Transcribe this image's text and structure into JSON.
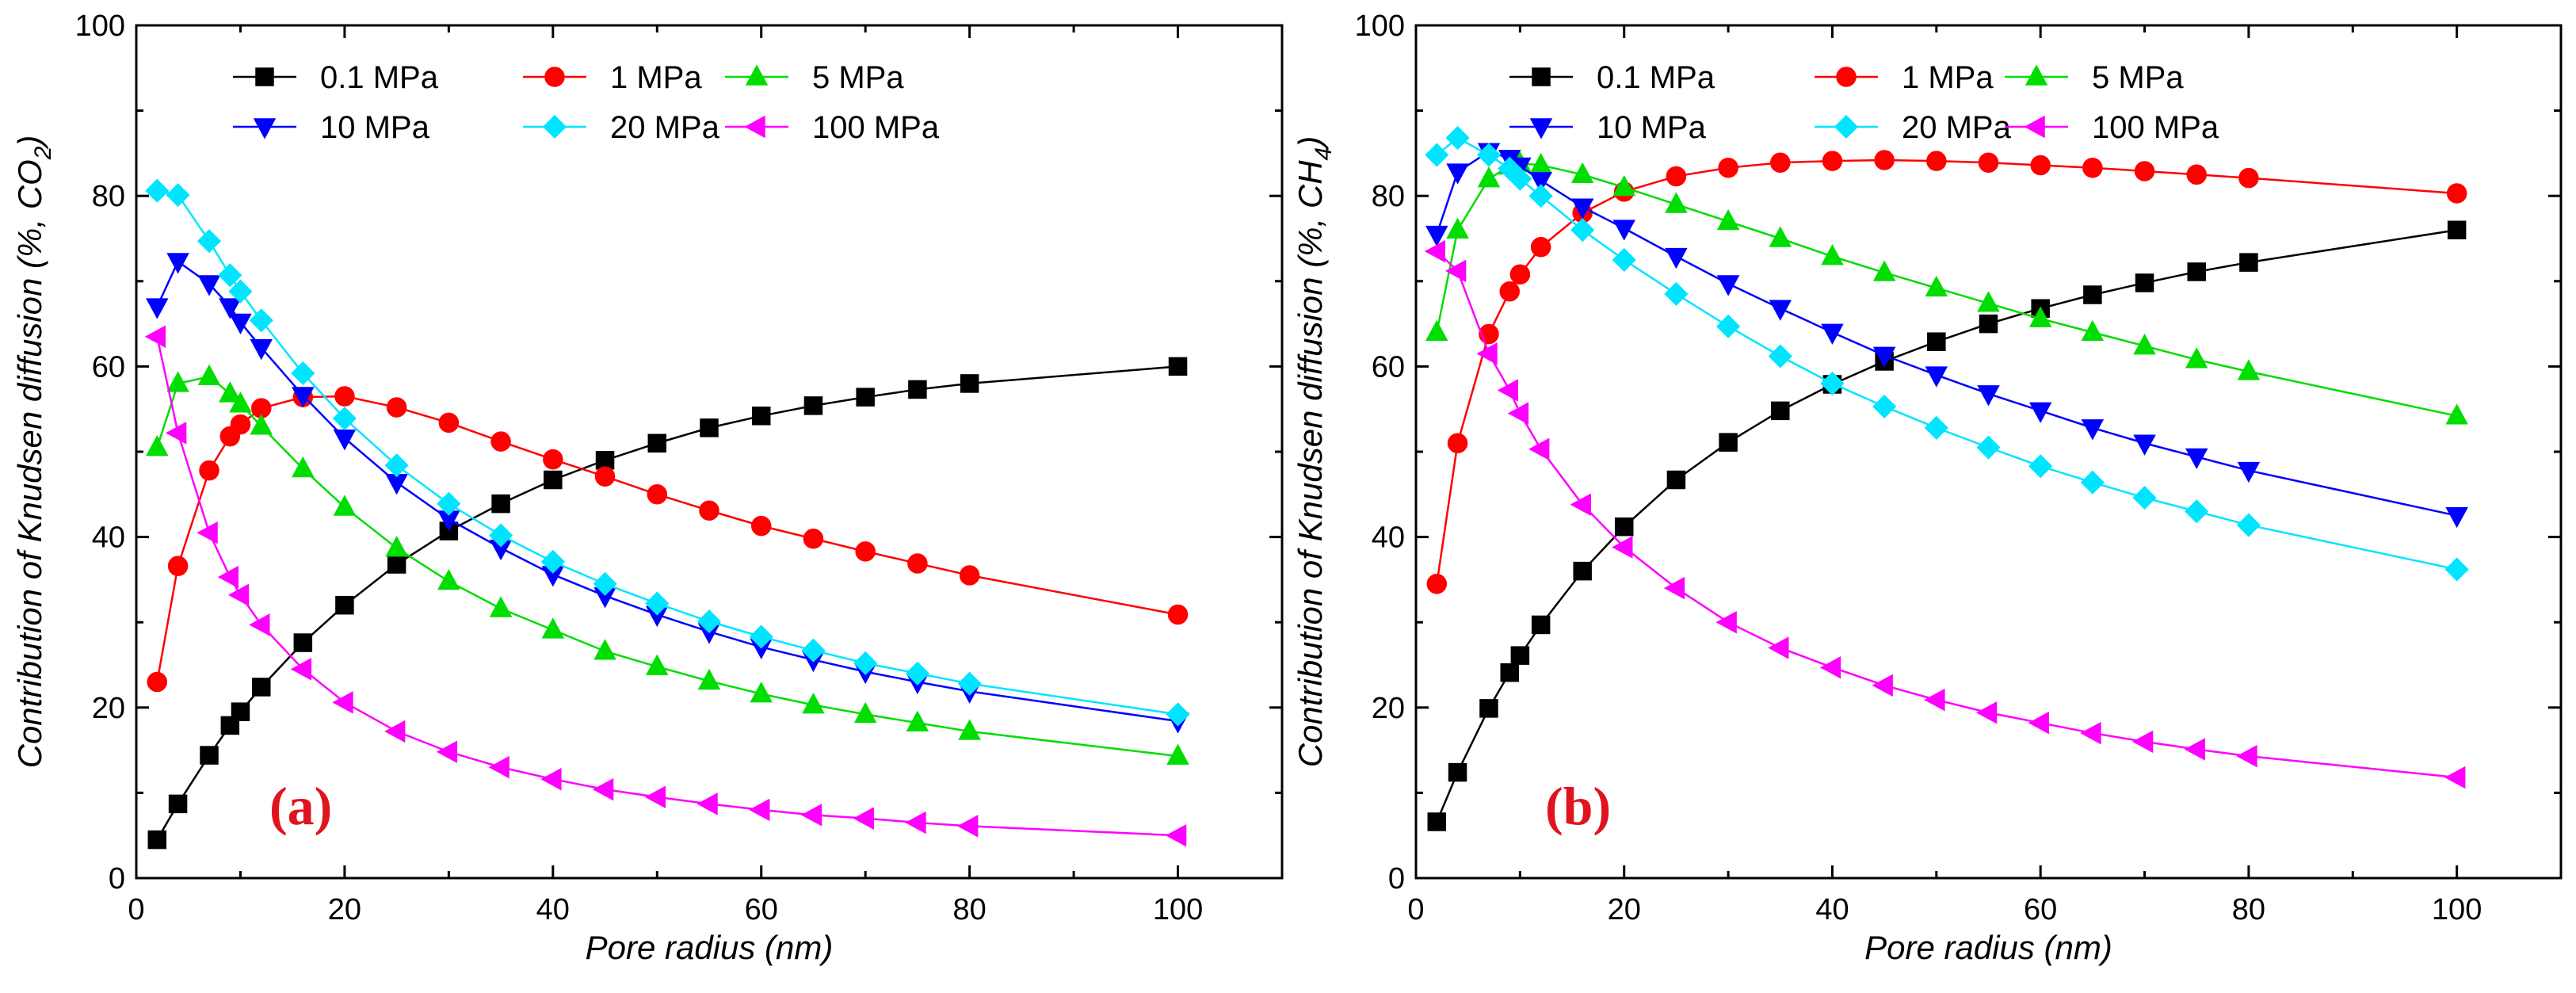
{
  "chart_data": [
    {
      "type": "line",
      "panel_label": "(a)",
      "xlabel": "Pore radius (nm)",
      "ylabel_main": "Contribution of Knudsen diffusion (%, CO",
      "ylabel_sub": "2",
      "ylabel_end": ")",
      "xlim": [
        0,
        110
      ],
      "ylim": [
        0,
        100
      ],
      "xticks": [
        "0",
        "20",
        "40",
        "60",
        "80",
        "100"
      ],
      "yticks": [
        "0",
        "20",
        "40",
        "60",
        "80",
        "100"
      ],
      "legend_position": "top",
      "x": [
        2,
        4,
        7,
        9,
        10,
        12,
        16,
        20,
        25,
        30,
        35,
        40,
        45,
        50,
        55,
        60,
        65,
        70,
        75,
        80,
        100
      ],
      "series": [
        {
          "name": "0.1 MPa",
          "color": "#000000",
          "marker": "square",
          "values": [
            4.5,
            8.7,
            14.4,
            17.9,
            19.5,
            22.4,
            27.6,
            32.0,
            36.8,
            40.7,
            43.9,
            46.7,
            49.0,
            51.0,
            52.8,
            54.2,
            55.4,
            56.4,
            57.3,
            58.0,
            60.0
          ]
        },
        {
          "name": "1 MPa",
          "color": "#ff0000",
          "marker": "circle",
          "values": [
            23.0,
            36.6,
            47.8,
            51.8,
            53.2,
            55.1,
            56.4,
            56.5,
            55.2,
            53.4,
            51.2,
            49.1,
            47.1,
            45.0,
            43.1,
            41.3,
            39.8,
            38.3,
            36.9,
            35.5,
            30.9
          ]
        },
        {
          "name": "5 MPa",
          "color": "#00dd00",
          "marker": "triangle-up",
          "values": [
            50.5,
            58.0,
            58.8,
            56.8,
            55.6,
            53.0,
            48.0,
            43.5,
            38.7,
            34.8,
            31.6,
            29.1,
            26.6,
            24.8,
            23.1,
            21.6,
            20.3,
            19.2,
            18.2,
            17.2,
            14.3
          ]
        },
        {
          "name": "10 MPa",
          "color": "#0000ff",
          "marker": "triangle-down",
          "values": [
            67.0,
            72.3,
            69.7,
            67.0,
            65.2,
            62.2,
            56.6,
            51.6,
            46.4,
            42.1,
            38.7,
            35.6,
            33.1,
            30.9,
            28.9,
            27.1,
            25.6,
            24.2,
            23.0,
            21.9,
            18.4
          ]
        },
        {
          "name": "20 MPa",
          "color": "#00e5ff",
          "marker": "diamond",
          "values": [
            80.6,
            80.1,
            74.7,
            70.7,
            68.8,
            65.4,
            59.2,
            53.9,
            48.4,
            43.9,
            40.2,
            37.1,
            34.5,
            32.2,
            30.1,
            28.3,
            26.7,
            25.2,
            24.0,
            22.8,
            19.2
          ]
        },
        {
          "name": "100 MPa",
          "color": "#ff00ff",
          "marker": "triangle-left",
          "values": [
            63.5,
            52.2,
            40.5,
            35.3,
            33.2,
            29.7,
            24.5,
            20.6,
            17.2,
            14.8,
            13.0,
            11.6,
            10.4,
            9.5,
            8.7,
            8.0,
            7.4,
            7.0,
            6.5,
            6.1,
            5.0
          ]
        }
      ]
    },
    {
      "type": "line",
      "panel_label": "(b)",
      "xlabel": "Pore radius (nm)",
      "ylabel_main": "Contribution of Knudsen diffusion (%, CH",
      "ylabel_sub": "4",
      "ylabel_end": ")",
      "xlim": [
        0,
        110
      ],
      "ylim": [
        0,
        100
      ],
      "xticks": [
        "0",
        "20",
        "40",
        "60",
        "80",
        "100"
      ],
      "yticks": [
        "0",
        "20",
        "40",
        "60",
        "80",
        "100"
      ],
      "legend_position": "top",
      "x": [
        2,
        4,
        7,
        9,
        10,
        12,
        16,
        20,
        25,
        30,
        35,
        40,
        45,
        50,
        55,
        60,
        65,
        70,
        75,
        80,
        100
      ],
      "series": [
        {
          "name": "0.1 MPa",
          "color": "#000000",
          "marker": "square",
          "values": [
            6.6,
            12.4,
            19.9,
            24.1,
            26.1,
            29.7,
            36.0,
            41.2,
            46.7,
            51.1,
            54.8,
            57.9,
            60.6,
            62.9,
            65.0,
            66.8,
            68.4,
            69.8,
            71.1,
            72.2,
            76.0
          ]
        },
        {
          "name": "1 MPa",
          "color": "#ff0000",
          "marker": "circle",
          "values": [
            34.5,
            51.0,
            63.8,
            68.8,
            70.8,
            74.0,
            78.0,
            80.5,
            82.3,
            83.3,
            83.9,
            84.1,
            84.2,
            84.1,
            83.9,
            83.6,
            83.3,
            82.9,
            82.5,
            82.1,
            80.3
          ]
        },
        {
          "name": "5 MPa",
          "color": "#00dd00",
          "marker": "triangle-up",
          "values": [
            64.0,
            76.0,
            82.0,
            83.5,
            83.8,
            83.6,
            82.5,
            81.0,
            79.0,
            77.0,
            75.0,
            72.9,
            71.0,
            69.2,
            67.4,
            65.6,
            64.0,
            62.4,
            60.8,
            59.4,
            54.2
          ]
        },
        {
          "name": "10 MPa",
          "color": "#0000ff",
          "marker": "triangle-down",
          "values": [
            75.5,
            82.8,
            85.2,
            84.4,
            83.5,
            81.8,
            78.7,
            76.2,
            72.9,
            69.7,
            66.8,
            64.0,
            61.3,
            59.0,
            56.8,
            54.8,
            52.8,
            51.0,
            49.4,
            47.8,
            42.5
          ]
        },
        {
          "name": "20 MPa",
          "color": "#00e5ff",
          "marker": "diamond",
          "values": [
            84.8,
            86.8,
            84.8,
            83.2,
            82.0,
            80.0,
            76.0,
            72.5,
            68.5,
            64.7,
            61.2,
            58.0,
            55.3,
            52.8,
            50.5,
            48.3,
            46.4,
            44.6,
            43.0,
            41.4,
            36.2
          ]
        },
        {
          "name": "100 MPa",
          "color": "#ff00ff",
          "marker": "triangle-left",
          "values": [
            73.5,
            71.2,
            61.5,
            57.2,
            54.5,
            50.3,
            43.8,
            38.8,
            34.0,
            30.0,
            27.0,
            24.7,
            22.6,
            20.9,
            19.4,
            18.2,
            17.0,
            16.0,
            15.1,
            14.3,
            11.8
          ]
        }
      ]
    }
  ]
}
